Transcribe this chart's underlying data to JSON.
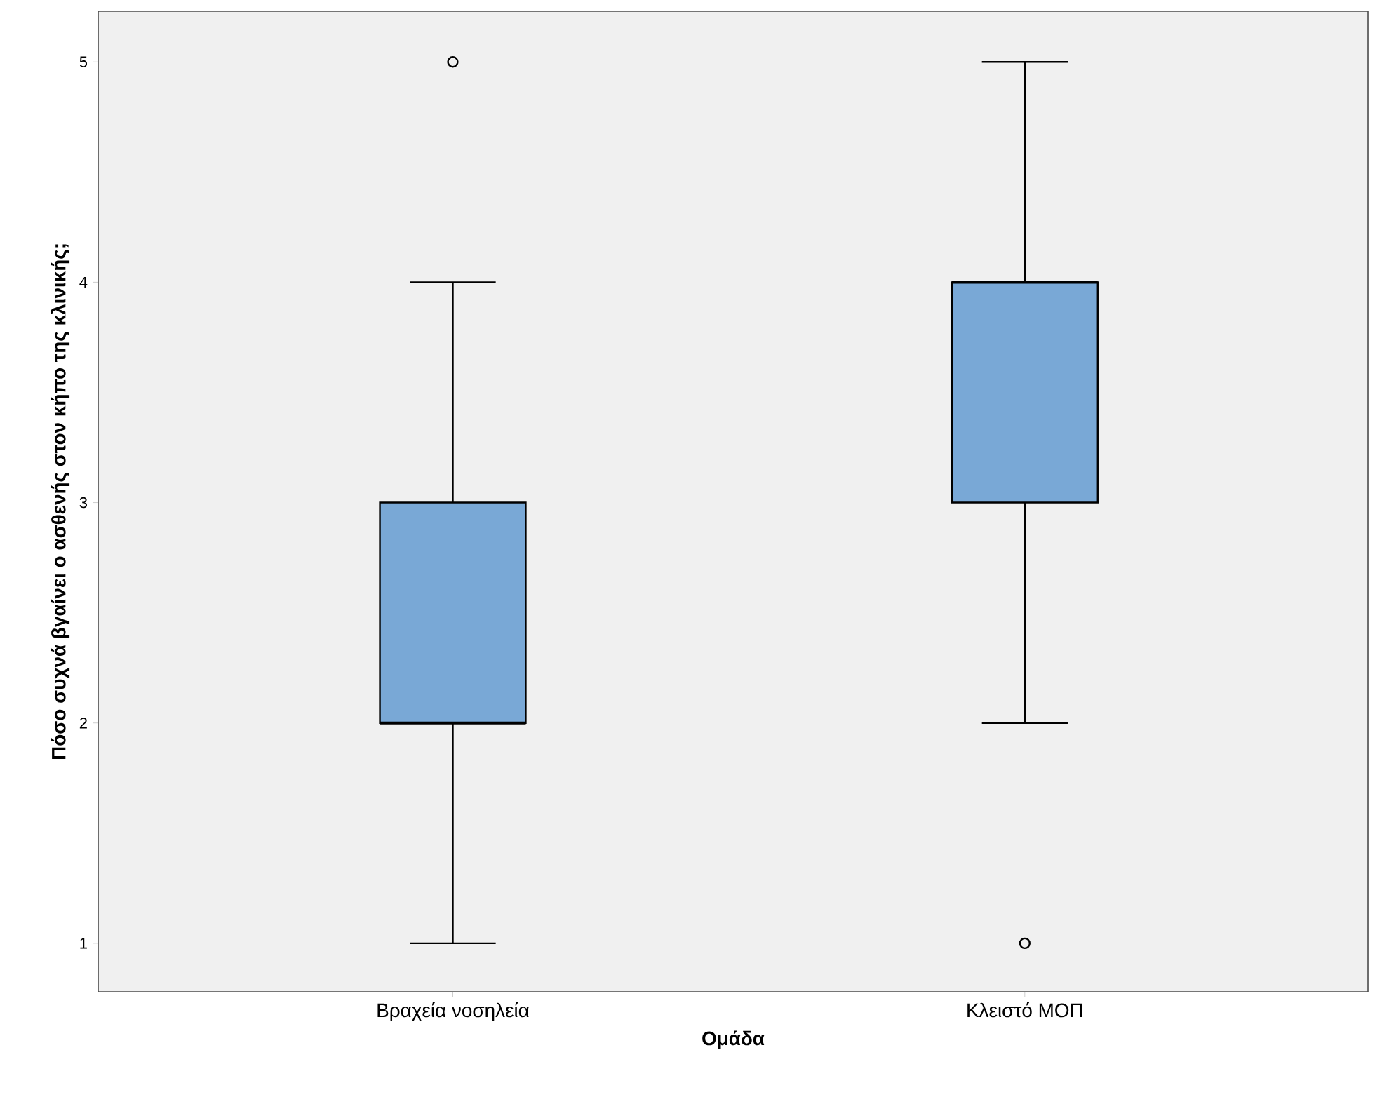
{
  "chart_data": {
    "type": "box",
    "xlabel": "Ομάδα",
    "ylabel": "Πόσο συχνά βγαίνει ο ασθενής στον κήπο της κλινικής;",
    "categories": [
      "Βραχεία νοσηλεία",
      "Κλειστό ΜΟΠ"
    ],
    "color": "#79a8d6",
    "boxes": [
      {
        "low": 1,
        "q1": 2,
        "median": 2,
        "q3": 3,
        "high": 4,
        "outliers": [
          5
        ]
      },
      {
        "low": 2,
        "q1": 3,
        "median": 4,
        "q3": 4,
        "high": 5,
        "outliers": [
          1
        ]
      }
    ],
    "ylim": [
      0.78,
      5.23
    ],
    "yticks": [
      1,
      2,
      3,
      4,
      5
    ]
  }
}
